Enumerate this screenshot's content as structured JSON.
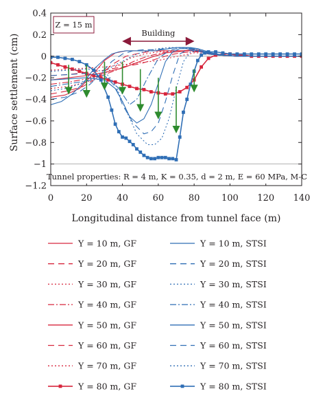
{
  "chart_data": {
    "type": "line",
    "xlabel": "Longitudinal distance from tunnel face (m)",
    "ylabel": "Surface settlement (cm)",
    "xlim": [
      0,
      140
    ],
    "ylim": [
      -1.2,
      0.4
    ],
    "xticks": [
      "0",
      "20",
      "40",
      "60",
      "80",
      "100",
      "120",
      "140"
    ],
    "yticks": [
      "0.4",
      "0.2",
      "0",
      "−0.2",
      "−0.4",
      "−0.6",
      "−0.8",
      "−1",
      "−1.2"
    ],
    "grid": false,
    "legend_position": "below",
    "annotations": {
      "depth": "Z = 15 m",
      "building": "Building",
      "building_extent": [
        40,
        80
      ],
      "properties": "Tunnel properties: R = 4 m, K = 0.35, d = 2 m, E = 60 MPa, M-C"
    },
    "arrows": [
      {
        "x": 10,
        "from": -0.08,
        "to": -0.32
      },
      {
        "x": 20,
        "from": -0.08,
        "to": -0.35
      },
      {
        "x": 30,
        "from": -0.05,
        "to": -0.28
      },
      {
        "x": 40,
        "from": -0.05,
        "to": -0.32
      },
      {
        "x": 50,
        "from": -0.12,
        "to": -0.48
      },
      {
        "x": 60,
        "from": -0.2,
        "to": -0.55
      },
      {
        "x": 70,
        "from": -0.28,
        "to": -0.68
      },
      {
        "x": 80,
        "from": -0.12,
        "to": -0.3
      }
    ],
    "series": [
      {
        "name": "Y = 10 m, GF",
        "color": "#d7263d",
        "dash": "",
        "marker": false,
        "x": [
          0,
          8,
          16,
          24,
          30,
          36,
          42,
          48,
          56,
          66,
          74,
          80,
          84,
          88,
          94,
          104,
          114,
          124,
          134,
          140
        ],
        "y": [
          -0.38,
          -0.36,
          -0.3,
          -0.16,
          -0.04,
          0.03,
          0.05,
          0.05,
          0.05,
          0.05,
          0.05,
          0.06,
          0.05,
          0.03,
          0.01,
          0,
          0,
          0,
          0,
          0
        ]
      },
      {
        "name": "Y = 20 m, GF",
        "color": "#d7263d",
        "dash": "9,6",
        "marker": false,
        "x": [
          0,
          10,
          18,
          26,
          34,
          42,
          50,
          58,
          66,
          74,
          80,
          84,
          88,
          94,
          104,
          114,
          124,
          134,
          140
        ],
        "y": [
          -0.35,
          -0.32,
          -0.28,
          -0.2,
          -0.08,
          0.0,
          0.03,
          0.05,
          0.05,
          0.05,
          0.06,
          0.05,
          0.03,
          0.01,
          0,
          0,
          0,
          0,
          0
        ]
      },
      {
        "name": "Y = 30 m, GF",
        "color": "#d7263d",
        "dash": "2,3",
        "marker": false,
        "x": [
          0,
          10,
          20,
          28,
          36,
          44,
          52,
          60,
          68,
          76,
          80,
          84,
          88,
          94,
          104,
          114,
          124,
          134,
          140
        ],
        "y": [
          -0.3,
          -0.28,
          -0.24,
          -0.18,
          -0.1,
          -0.02,
          0.02,
          0.04,
          0.05,
          0.05,
          0.06,
          0.05,
          0.03,
          0.01,
          0,
          0,
          0,
          0,
          0
        ]
      },
      {
        "name": "Y = 40 m, GF",
        "color": "#d7263d",
        "dash": "9,3,2,3",
        "marker": false,
        "x": [
          0,
          10,
          20,
          30,
          38,
          46,
          54,
          62,
          70,
          78,
          82,
          86,
          90,
          96,
          104,
          114,
          124,
          134,
          140
        ],
        "y": [
          -0.26,
          -0.24,
          -0.21,
          -0.17,
          -0.12,
          -0.05,
          0.0,
          0.03,
          0.05,
          0.05,
          0.05,
          0.04,
          0.02,
          0.01,
          0,
          0,
          0,
          0,
          0
        ]
      },
      {
        "name": "Y = 50 m, GF",
        "color": "#d7263d",
        "dash": "",
        "marker": false,
        "x": [
          0,
          10,
          20,
          30,
          40,
          48,
          56,
          64,
          70,
          76,
          80,
          84,
          88,
          94,
          104,
          114,
          124,
          134,
          140
        ],
        "y": [
          -0.22,
          -0.2,
          -0.18,
          -0.15,
          -0.11,
          -0.06,
          -0.01,
          0.03,
          0.04,
          0.05,
          0.05,
          0.04,
          0.02,
          0.01,
          0,
          0,
          0,
          0,
          0
        ]
      },
      {
        "name": "Y = 60 m, GF",
        "color": "#d7263d",
        "dash": "9,6",
        "marker": false,
        "x": [
          0,
          10,
          20,
          30,
          40,
          50,
          58,
          66,
          72,
          78,
          82,
          86,
          90,
          96,
          104,
          114,
          124,
          134,
          140
        ],
        "y": [
          -0.18,
          -0.17,
          -0.15,
          -0.13,
          -0.1,
          -0.07,
          -0.03,
          0.01,
          0.03,
          0.04,
          0.04,
          0.03,
          0.02,
          0.01,
          0,
          0,
          0,
          0,
          0
        ]
      },
      {
        "name": "Y = 70 m, GF",
        "color": "#d7263d",
        "dash": "2,3",
        "marker": false,
        "x": [
          0,
          10,
          20,
          30,
          40,
          50,
          60,
          68,
          74,
          80,
          84,
          88,
          92,
          98,
          106,
          116,
          126,
          136,
          140
        ],
        "y": [
          -0.13,
          -0.12,
          -0.11,
          -0.1,
          -0.08,
          -0.06,
          -0.04,
          -0.01,
          0.01,
          0.03,
          0.03,
          0.02,
          0.01,
          0.01,
          0,
          0,
          0,
          0,
          0
        ]
      },
      {
        "name": "Y = 80 m, GF",
        "color": "#d7263d",
        "dash": "",
        "marker": true,
        "x": [
          0,
          4,
          8,
          12,
          16,
          20,
          24,
          28,
          32,
          36,
          40,
          44,
          48,
          52,
          56,
          60,
          64,
          68,
          72,
          76,
          80,
          84,
          88,
          92,
          96,
          100,
          104,
          108,
          112,
          116,
          120,
          124,
          128,
          132,
          136,
          140
        ],
        "y": [
          -0.06,
          -0.08,
          -0.1,
          -0.12,
          -0.14,
          -0.16,
          -0.18,
          -0.2,
          -0.22,
          -0.24,
          -0.26,
          -0.28,
          -0.3,
          -0.31,
          -0.33,
          -0.34,
          -0.35,
          -0.35,
          -0.33,
          -0.29,
          -0.22,
          -0.1,
          -0.02,
          0.01,
          0.02,
          0.02,
          0.01,
          0.01,
          0,
          0,
          0,
          0,
          0,
          0,
          0,
          0
        ]
      },
      {
        "name": "Y = 10 m, STSI",
        "color": "#2f6eb5",
        "dash": "",
        "marker": false,
        "x": [
          0,
          6,
          12,
          18,
          24,
          30,
          34,
          38,
          42,
          46,
          50,
          54,
          58,
          62,
          66,
          70,
          74,
          78,
          82,
          86,
          90,
          96,
          104,
          114,
          124,
          134,
          140
        ],
        "y": [
          -0.45,
          -0.42,
          -0.35,
          -0.25,
          -0.12,
          -0.03,
          0.02,
          0.04,
          0.05,
          0.05,
          0.05,
          0.05,
          0.05,
          0.06,
          0.07,
          0.08,
          0.08,
          0.08,
          0.07,
          0.05,
          0.03,
          0.01,
          0,
          0,
          0,
          0,
          0
        ]
      },
      {
        "name": "Y = 20 m, STSI",
        "color": "#2f6eb5",
        "dash": "9,6",
        "marker": false,
        "x": [
          0,
          8,
          16,
          22,
          28,
          34,
          40,
          46,
          52,
          58,
          64,
          70,
          76,
          82,
          88,
          94,
          104,
          114,
          124,
          134,
          140
        ],
        "y": [
          -0.4,
          -0.38,
          -0.33,
          -0.26,
          -0.16,
          -0.05,
          0.02,
          0.05,
          0.06,
          0.06,
          0.07,
          0.08,
          0.08,
          0.06,
          0.03,
          0.01,
          0,
          0,
          0,
          0,
          0
        ]
      },
      {
        "name": "Y = 30 m, STSI",
        "color": "#2f6eb5",
        "dash": "2,3",
        "marker": false,
        "x": [
          0,
          8,
          16,
          24,
          30,
          36,
          42,
          48,
          54,
          60,
          66,
          72,
          78,
          84,
          90,
          96,
          104,
          114,
          124,
          134,
          140
        ],
        "y": [
          -0.32,
          -0.3,
          -0.26,
          -0.2,
          -0.14,
          -0.08,
          -0.03,
          0.02,
          0.05,
          0.07,
          0.08,
          0.08,
          0.07,
          0.05,
          0.03,
          0.01,
          0,
          0,
          0,
          0,
          0
        ]
      },
      {
        "name": "Y = 40 m, STSI",
        "color": "#2f6eb5",
        "dash": "9,3,2,3",
        "marker": false,
        "x": [
          0,
          8,
          16,
          24,
          32,
          38,
          44,
          48,
          54,
          60,
          66,
          72,
          78,
          84,
          90,
          96,
          104,
          114,
          124,
          134,
          140
        ],
        "y": [
          -0.28,
          -0.26,
          -0.24,
          -0.22,
          -0.2,
          -0.3,
          -0.45,
          -0.4,
          -0.2,
          -0.02,
          0.05,
          0.08,
          0.08,
          0.06,
          0.03,
          0.01,
          0,
          0,
          0,
          0,
          0
        ]
      },
      {
        "name": "Y = 50 m, STSI",
        "color": "#2f6eb5",
        "dash": "",
        "marker": false,
        "x": [
          0,
          10,
          20,
          30,
          36,
          40,
          44,
          48,
          52,
          56,
          60,
          64,
          68,
          72,
          76,
          80,
          84,
          88,
          94,
          104,
          114,
          124,
          134,
          140
        ],
        "y": [
          -0.22,
          -0.21,
          -0.2,
          -0.22,
          -0.3,
          -0.42,
          -0.56,
          -0.62,
          -0.58,
          -0.45,
          -0.25,
          -0.05,
          0.04,
          0.07,
          0.07,
          0.06,
          0.04,
          0.02,
          0.01,
          0,
          0,
          0,
          0,
          0
        ]
      },
      {
        "name": "Y = 60 m, STSI",
        "color": "#2f6eb5",
        "dash": "9,6",
        "marker": false,
        "x": [
          0,
          10,
          20,
          30,
          36,
          40,
          46,
          52,
          56,
          60,
          64,
          68,
          72,
          76,
          80,
          84,
          88,
          94,
          104,
          114,
          124,
          134,
          140
        ],
        "y": [
          -0.18,
          -0.17,
          -0.16,
          -0.18,
          -0.28,
          -0.45,
          -0.62,
          -0.72,
          -0.7,
          -0.62,
          -0.42,
          -0.18,
          0.02,
          0.06,
          0.05,
          0.04,
          0.02,
          0.01,
          0,
          0,
          0,
          0,
          0
        ]
      },
      {
        "name": "Y = 70 m, STSI",
        "color": "#2f6eb5",
        "dash": "2,3",
        "marker": false,
        "x": [
          0,
          10,
          20,
          30,
          36,
          42,
          48,
          54,
          58,
          62,
          66,
          70,
          74,
          78,
          82,
          86,
          90,
          96,
          104,
          114,
          124,
          134,
          140
        ],
        "y": [
          -0.14,
          -0.13,
          -0.12,
          -0.14,
          -0.26,
          -0.5,
          -0.72,
          -0.82,
          -0.82,
          -0.76,
          -0.58,
          -0.3,
          -0.05,
          0.04,
          0.05,
          0.04,
          0.02,
          0.01,
          0,
          0,
          0,
          0,
          0
        ]
      },
      {
        "name": "Y = 80 m, STSI",
        "color": "#2f6eb5",
        "dash": "",
        "marker": true,
        "x": [
          0,
          4,
          8,
          12,
          16,
          20,
          24,
          28,
          32,
          34,
          36,
          38,
          40,
          42,
          44,
          46,
          48,
          50,
          52,
          54,
          56,
          58,
          60,
          62,
          64,
          66,
          68,
          70,
          72,
          74,
          76,
          78,
          80,
          82,
          84,
          86,
          88,
          92,
          96,
          100,
          104,
          108,
          112,
          116,
          120,
          124,
          128,
          132,
          136,
          140
        ],
        "y": [
          -0.01,
          -0.01,
          -0.02,
          -0.03,
          -0.05,
          -0.08,
          -0.13,
          -0.22,
          -0.38,
          -0.5,
          -0.63,
          -0.7,
          -0.75,
          -0.76,
          -0.79,
          -0.82,
          -0.86,
          -0.89,
          -0.92,
          -0.94,
          -0.95,
          -0.95,
          -0.94,
          -0.94,
          -0.94,
          -0.95,
          -0.95,
          -0.96,
          -0.75,
          -0.52,
          -0.4,
          -0.26,
          -0.14,
          -0.04,
          0.01,
          0.03,
          0.04,
          0.04,
          0.03,
          0.02,
          0.02,
          0.02,
          0.02,
          0.02,
          0.02,
          0.02,
          0.02,
          0.02,
          0.02,
          0.02
        ]
      }
    ]
  }
}
